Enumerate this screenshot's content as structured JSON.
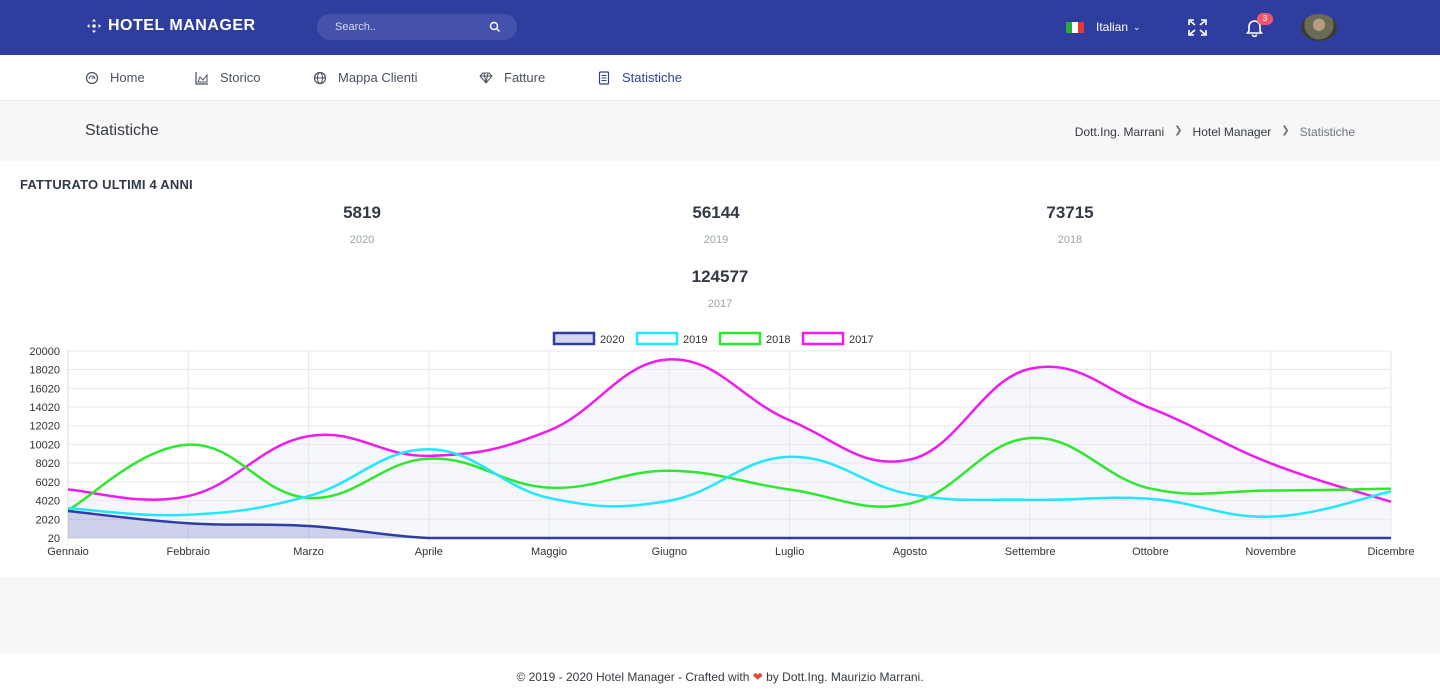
{
  "app": {
    "logo_text": "HOTEL MANAGER"
  },
  "search": {
    "placeholder": "Search..",
    "value": ""
  },
  "topbar": {
    "language": "Italian",
    "notifications_count": "3"
  },
  "nav": [
    {
      "label": "Home",
      "icon": "dashboard-icon"
    },
    {
      "label": "Storico",
      "icon": "chart-area-icon"
    },
    {
      "label": "Mappa Clienti",
      "icon": "globe-icon"
    },
    {
      "label": "Fatture",
      "icon": "diamond-icon"
    },
    {
      "label": "Statistiche",
      "icon": "document-icon",
      "active": true
    }
  ],
  "page": {
    "title": "Statistiche",
    "breadcrumb": [
      "Dott.Ing. Marrani",
      "Hotel Manager",
      "Statistiche"
    ]
  },
  "card": {
    "title": "FATTURATO ULTIMI 4 ANNI",
    "stats": [
      {
        "value": "5819",
        "year": "2020"
      },
      {
        "value": "56144",
        "year": "2019"
      },
      {
        "value": "73715",
        "year": "2018"
      },
      {
        "value": "124577",
        "year": "2017"
      }
    ]
  },
  "chart_data": {
    "type": "line",
    "categories": [
      "Gennaio",
      "Febbraio",
      "Marzo",
      "Aprile",
      "Maggio",
      "Giugno",
      "Luglio",
      "Agosto",
      "Settembre",
      "Ottobre",
      "Novembre",
      "Dicembre"
    ],
    "ylim": [
      20,
      20000
    ],
    "yticks": [
      20,
      2020,
      4020,
      6020,
      8020,
      10020,
      12020,
      14020,
      16020,
      18020,
      20000
    ],
    "legend_position": "top-center",
    "grid": true,
    "series": [
      {
        "name": "2020",
        "color": "#2f3e9e",
        "fill": "rgba(47,62,158,0.2)",
        "values": [
          2900,
          1600,
          1300,
          20,
          20,
          20,
          20,
          20,
          20,
          20,
          20,
          20
        ]
      },
      {
        "name": "2019",
        "color": "#22e5ff",
        "fill": "none",
        "values": [
          3200,
          2500,
          4500,
          9500,
          4300,
          4000,
          8700,
          4700,
          4100,
          4200,
          2300,
          5000
        ]
      },
      {
        "name": "2018",
        "color": "#2ee82e",
        "fill": "none",
        "values": [
          3000,
          10000,
          4300,
          8500,
          5400,
          7200,
          5200,
          3700,
          10700,
          5300,
          5100,
          5300
        ]
      },
      {
        "name": "2017",
        "color": "#ee1cee",
        "fill": "rgba(225,228,245,0.3)",
        "values": [
          5200,
          4500,
          10900,
          8800,
          11500,
          19100,
          12600,
          8400,
          18100,
          13900,
          8000,
          3900
        ]
      }
    ]
  },
  "footer": {
    "before": "© 2019 - 2020 Hotel Manager - Crafted with",
    "heart": "❤",
    "after": "by Dott.Ing. Maurizio Marrani."
  }
}
